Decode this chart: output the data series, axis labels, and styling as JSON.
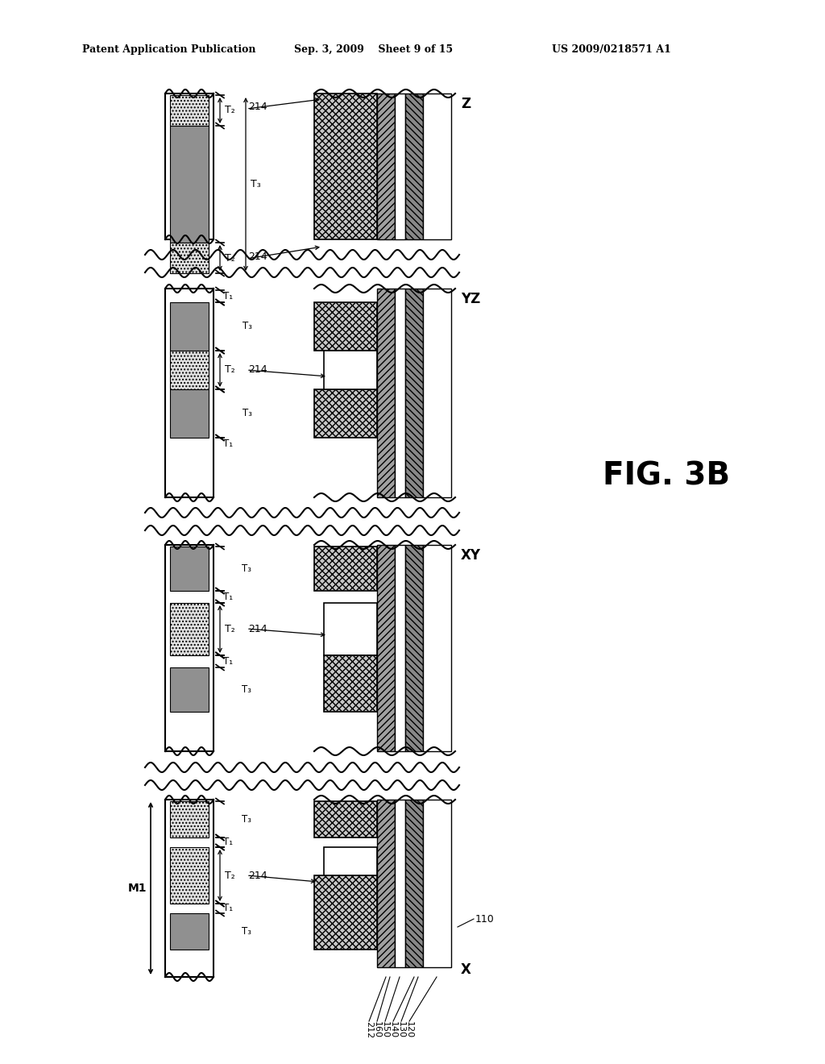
{
  "header_left": "Patent Application Publication",
  "header_mid": "Sep. 3, 2009    Sheet 9 of 15",
  "header_right": "US 2009/0218571 A1",
  "fig_label": "FIG. 3B",
  "bg_color": "#ffffff",
  "section_labels": [
    "Z",
    "YZ",
    "XY",
    "X"
  ],
  "ref_numbers_bottom": [
    "212",
    "160",
    "150",
    "140",
    "130",
    "120"
  ],
  "ref_110": "110",
  "ref_214": "214",
  "M1_label": "M1"
}
